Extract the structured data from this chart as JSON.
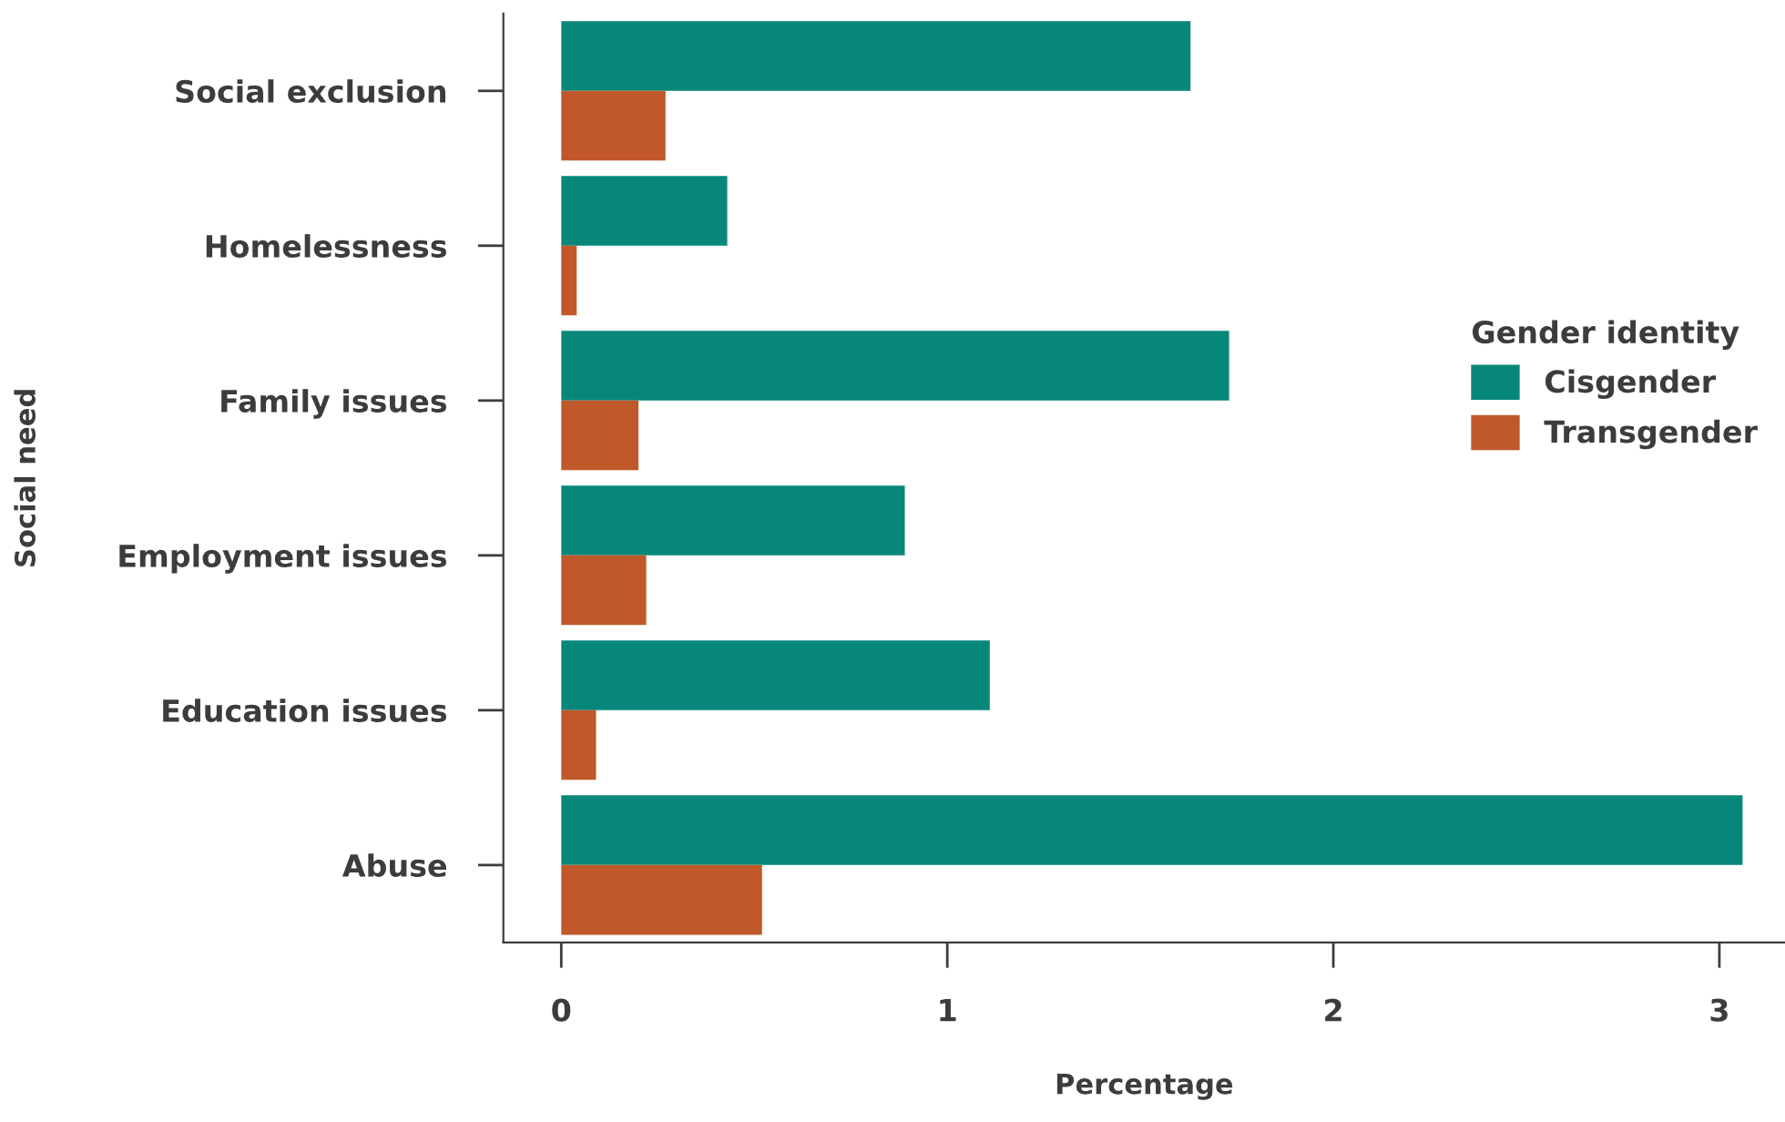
{
  "chart_data": {
    "type": "bar",
    "orientation": "horizontal",
    "xlabel": "Percentage",
    "ylabel": "Social need",
    "legend_title": "Gender identity",
    "categories": [
      "Social exclusion",
      "Homelessness",
      "Family issues",
      "Employment issues",
      "Education issues",
      "Abuse"
    ],
    "series": [
      {
        "name": "Cisgender",
        "color": "#07877a",
        "values": [
          1.63,
          0.43,
          1.73,
          0.89,
          1.11,
          3.06
        ]
      },
      {
        "name": "Transgender",
        "color": "#c0582a",
        "values": [
          0.27,
          0.04,
          0.2,
          0.22,
          0.09,
          0.52
        ]
      }
    ],
    "xlim": [
      -0.15,
      3.17
    ],
    "xticks": [
      0,
      1,
      2,
      3
    ],
    "grid": false,
    "legend": "right"
  }
}
